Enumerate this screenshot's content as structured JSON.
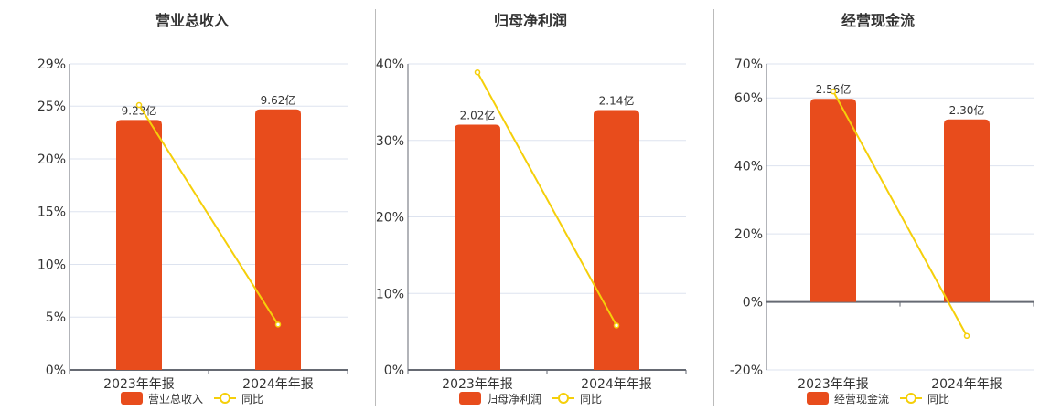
{
  "colors": {
    "bar": "#e84c1c",
    "line": "#f5cf0a",
    "grid": "#dde3ef",
    "axis": "#666a73",
    "text": "#333333"
  },
  "chart_data": [
    {
      "type": "bar+line",
      "title": "营业总收入",
      "categories": [
        "2023年年报",
        "2024年年报"
      ],
      "series": [
        {
          "name": "营业总收入",
          "type": "bar",
          "values": [
            9.23,
            9.62
          ],
          "labels": [
            "9.23亿",
            "9.62亿"
          ],
          "axis_range": [
            0,
            11.3
          ]
        },
        {
          "name": "同比",
          "type": "line",
          "values": [
            25.1,
            4.3
          ],
          "unit": "%"
        }
      ],
      "ylim": [
        0,
        29
      ],
      "yticks": [
        0,
        5,
        10,
        15,
        20,
        25,
        29
      ],
      "ytick_labels": [
        "0%",
        "5%",
        "10%",
        "15%",
        "20%",
        "25%",
        "29%"
      ],
      "grid": true,
      "legend": "bottom"
    },
    {
      "type": "bar+line",
      "title": "归母净利润",
      "categories": [
        "2023年年报",
        "2024年年报"
      ],
      "series": [
        {
          "name": "归母净利润",
          "type": "bar",
          "values": [
            2.02,
            2.14
          ],
          "labels": [
            "2.02亿",
            "2.14亿"
          ],
          "axis_range": [
            0,
            2.52
          ]
        },
        {
          "name": "同比",
          "type": "line",
          "values": [
            38.9,
            5.8
          ],
          "unit": "%"
        }
      ],
      "ylim": [
        0,
        40
      ],
      "yticks": [
        0,
        10,
        20,
        30,
        40
      ],
      "ytick_labels": [
        "0%",
        "10%",
        "20%",
        "30%",
        "40%"
      ],
      "grid": true,
      "legend": "bottom"
    },
    {
      "type": "bar+line",
      "title": "经营现金流",
      "categories": [
        "2023年年报",
        "2024年年报"
      ],
      "series": [
        {
          "name": "经营现金流",
          "type": "bar",
          "values": [
            2.56,
            2.3
          ],
          "labels": [
            "2.56亿",
            "2.30亿"
          ],
          "axis_range": [
            -0.857,
            3.0
          ]
        },
        {
          "name": "同比",
          "type": "line",
          "values": [
            61.9,
            -10.0
          ],
          "unit": "%"
        }
      ],
      "ylim": [
        -20,
        70
      ],
      "yticks": [
        -20,
        0,
        20,
        40,
        60,
        70
      ],
      "ytick_labels": [
        "-20%",
        "0%",
        "20%",
        "40%",
        "60%",
        "70%"
      ],
      "grid": true,
      "legend": "bottom"
    }
  ]
}
